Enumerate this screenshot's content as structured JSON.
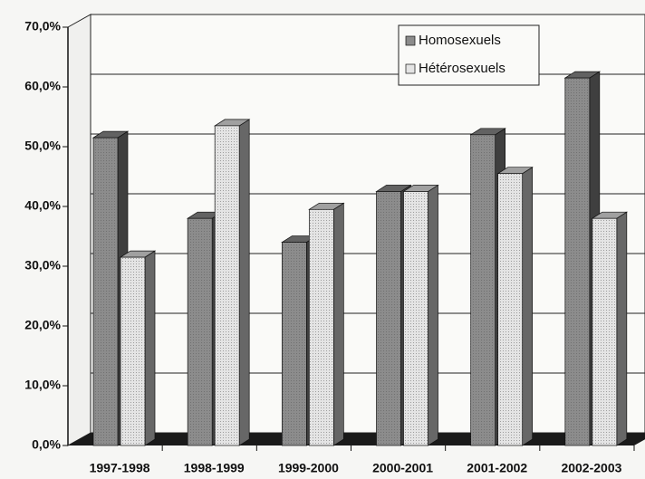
{
  "chart_data": {
    "type": "bar3d",
    "categories": [
      "1997-1998",
      "1998-1999",
      "1999-2000",
      "2000-2001",
      "2001-2002",
      "2002-2003"
    ],
    "series": [
      {
        "name": "Homosexuels",
        "color": "#8c8c8c",
        "values": [
          51.5,
          38,
          34,
          42.5,
          52,
          61.5
        ]
      },
      {
        "name": "Hétérosexuels",
        "color": "#e4e4e4",
        "values": [
          31.5,
          53.5,
          39.5,
          42.5,
          45.5,
          38
        ]
      }
    ],
    "ylim": [
      0,
      70
    ],
    "yticks": [
      {
        "value": 0,
        "label": "0,0%"
      },
      {
        "value": 10,
        "label": "10,0%"
      },
      {
        "value": 20,
        "label": "20,0%"
      },
      {
        "value": 30,
        "label": "30,0%"
      },
      {
        "value": 40,
        "label": "40,0%"
      },
      {
        "value": 50,
        "label": "50,0%"
      },
      {
        "value": 60,
        "label": "60,0%"
      },
      {
        "value": 70,
        "label": "70,0%"
      }
    ],
    "grid": true,
    "legend_position": "top-right"
  }
}
